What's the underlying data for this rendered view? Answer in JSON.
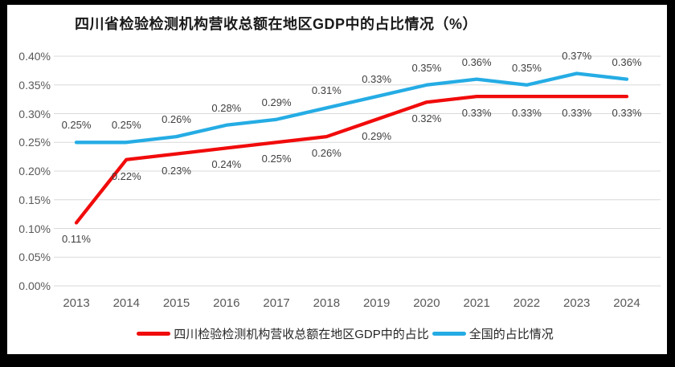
{
  "chart_data": {
    "type": "line",
    "title": "四川省检验检测机构营收总额在地区GDP中的占比情况（%）",
    "categories": [
      "2013",
      "2014",
      "2015",
      "2016",
      "2017",
      "2018",
      "2019",
      "2020",
      "2021",
      "2022",
      "2023",
      "2024"
    ],
    "series": [
      {
        "key": "sichuan",
        "name": "四川检验检测机构营收总额在地区GDP中的占比",
        "color": "#f10b0b",
        "values": [
          0.11,
          0.22,
          0.23,
          0.24,
          0.25,
          0.26,
          0.29,
          0.32,
          0.33,
          0.33,
          0.33,
          0.33
        ],
        "labels": [
          "0.11%",
          "0.22%",
          "0.23%",
          "0.24%",
          "0.25%",
          "0.26%",
          "0.29%",
          "0.32%",
          "0.33%",
          "0.33%",
          "0.33%",
          "0.33%"
        ],
        "label_position": "below"
      },
      {
        "key": "national",
        "name": "全国的占比情况",
        "color": "#25ace4",
        "values": [
          0.25,
          0.25,
          0.26,
          0.28,
          0.29,
          0.31,
          0.33,
          0.35,
          0.36,
          0.35,
          0.37,
          0.36
        ],
        "labels": [
          "0.25%",
          "0.25%",
          "0.26%",
          "0.28%",
          "0.29%",
          "0.31%",
          "0.33%",
          "0.35%",
          "0.36%",
          "0.35%",
          "0.37%",
          "0.36%"
        ],
        "label_position": "above"
      }
    ],
    "y_axis": {
      "min": 0,
      "max": 0.4,
      "step": 0.05,
      "tick_labels": [
        "0.00%",
        "0.05%",
        "0.10%",
        "0.15%",
        "0.20%",
        "0.25%",
        "0.30%",
        "0.35%",
        "0.40%"
      ]
    },
    "grid": true,
    "legend_position": "bottom",
    "colors": {
      "grid": "#d9d9d9",
      "axis_text": "#595959",
      "data_label_text": "#3f3f3f",
      "title_text": "#1a1a1a",
      "panel_background": "#ffffff",
      "frame_background": "#000000"
    }
  }
}
